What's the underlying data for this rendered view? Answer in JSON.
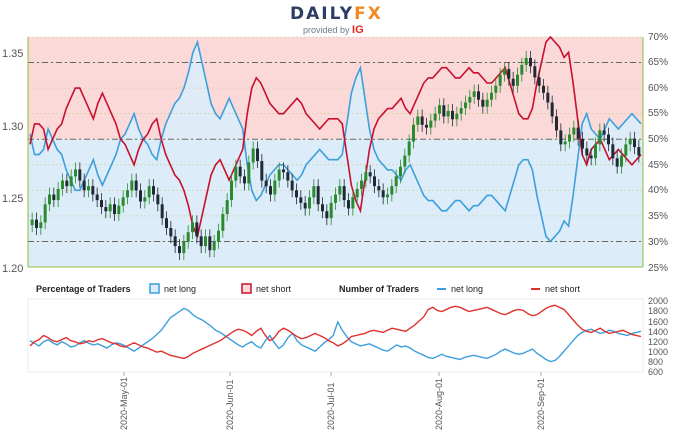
{
  "header": {
    "brand_main": "DAILY",
    "brand_accent": "FX",
    "provided_by": "provided by",
    "provider": "IG"
  },
  "chart_data": [
    {
      "type": "candlestick+area",
      "title": "",
      "x_ticks": [
        "2020-May-01",
        "2020-Jun-01",
        "2020-Jul-01",
        "2020-Aug-01",
        "2020-Sep-01"
      ],
      "left_axis": {
        "ylim": [
          1.2,
          1.365
        ],
        "ticks": [
          "1.20",
          "1.25",
          "1.30",
          "1.35"
        ]
      },
      "right_axis": {
        "ylim": [
          25,
          70
        ],
        "ticks": [
          "25%",
          "30%",
          "35%",
          "40%",
          "45%",
          "50%",
          "55%",
          "60%",
          "65%",
          "70%"
        ]
      },
      "price_candles_close": [
        1.234,
        1.228,
        1.232,
        1.245,
        1.252,
        1.248,
        1.256,
        1.262,
        1.258,
        1.265,
        1.27,
        1.262,
        1.255,
        1.258,
        1.252,
        1.248,
        1.243,
        1.24,
        1.245,
        1.238,
        1.244,
        1.25,
        1.255,
        1.262,
        1.255,
        1.247,
        1.25,
        1.258,
        1.252,
        1.245,
        1.235,
        1.228,
        1.222,
        1.215,
        1.21,
        1.218,
        1.225,
        1.232,
        1.222,
        1.215,
        1.222,
        1.212,
        1.218,
        1.226,
        1.238,
        1.248,
        1.262,
        1.272,
        1.265,
        1.26,
        1.275,
        1.285,
        1.276,
        1.262,
        1.258,
        1.252,
        1.262,
        1.27,
        1.268,
        1.262,
        1.255,
        1.25,
        1.246,
        1.242,
        1.25,
        1.258,
        1.245,
        1.24,
        1.235,
        1.246,
        1.252,
        1.258,
        1.248,
        1.242,
        1.25,
        1.256,
        1.262,
        1.268,
        1.265,
        1.258,
        1.255,
        1.25,
        1.252,
        1.258,
        1.265,
        1.272,
        1.28,
        1.29,
        1.302,
        1.308,
        1.302,
        1.3,
        1.305,
        1.31,
        1.316,
        1.308,
        1.312,
        1.306,
        1.31,
        1.314,
        1.318,
        1.322,
        1.326,
        1.32,
        1.315,
        1.32,
        1.325,
        1.33,
        1.338,
        1.342,
        1.335,
        1.33,
        1.338,
        1.345,
        1.35,
        1.344,
        1.336,
        1.33,
        1.325,
        1.318,
        1.308,
        1.298,
        1.288,
        1.29,
        1.295,
        1.3,
        1.292,
        1.285,
        1.28,
        1.278,
        1.288,
        1.298,
        1.295,
        1.288,
        1.278,
        1.272,
        1.28,
        1.288,
        1.292,
        1.286,
        1.28
      ],
      "percentage_net_long": [
        51,
        47,
        47,
        48,
        52,
        50,
        48,
        47,
        44,
        42,
        40,
        40,
        42,
        44,
        46,
        43,
        41,
        43,
        45,
        47,
        50,
        51,
        53,
        55,
        52,
        50,
        49,
        47,
        46,
        50,
        53,
        55,
        57,
        58,
        60,
        63,
        67,
        69,
        65,
        61,
        57,
        55,
        54,
        56,
        58,
        56,
        54,
        52,
        45,
        40,
        38,
        39,
        41,
        43,
        44,
        45,
        45,
        44,
        43,
        42,
        43,
        45,
        46,
        47,
        48,
        47,
        46,
        46,
        46,
        47,
        53,
        59,
        62,
        64,
        58,
        52,
        48,
        46,
        45,
        44,
        44,
        43,
        42,
        44,
        45,
        43,
        41,
        39,
        38,
        38,
        37,
        36,
        36,
        37,
        38,
        38,
        37,
        36,
        37,
        37,
        38,
        39,
        39,
        38,
        37,
        36,
        39,
        42,
        45,
        46,
        46,
        44,
        39,
        35,
        31,
        30,
        31,
        32,
        34,
        33,
        39,
        46,
        53,
        55,
        52,
        51,
        50,
        52,
        54,
        53,
        52,
        53,
        54,
        55,
        54,
        53
      ],
      "percentage_net_short": [
        49,
        53,
        53,
        52,
        48,
        50,
        52,
        53,
        56,
        58,
        60,
        60,
        58,
        56,
        54,
        57,
        59,
        57,
        55,
        53,
        50,
        49,
        47,
        45,
        48,
        50,
        51,
        53,
        54,
        50,
        47,
        45,
        43,
        42,
        40,
        37,
        33,
        31,
        35,
        39,
        43,
        45,
        46,
        44,
        42,
        44,
        46,
        48,
        55,
        60,
        62,
        61,
        59,
        57,
        56,
        55,
        55,
        56,
        57,
        58,
        57,
        55,
        54,
        53,
        52,
        53,
        54,
        54,
        54,
        53,
        47,
        41,
        38,
        36,
        42,
        48,
        52,
        54,
        55,
        56,
        56,
        57,
        58,
        56,
        55,
        57,
        59,
        61,
        62,
        62,
        63,
        64,
        64,
        63,
        62,
        62,
        63,
        64,
        63,
        63,
        62,
        61,
        61,
        62,
        63,
        64,
        61,
        58,
        55,
        54,
        54,
        56,
        61,
        65,
        69,
        70,
        69,
        68,
        66,
        67,
        61,
        54,
        47,
        45,
        48,
        49,
        50,
        48,
        46,
        47,
        48,
        47,
        46,
        45,
        46,
        47
      ],
      "series": [
        {
          "name": "net long",
          "color": "#3d9fdc"
        },
        {
          "name": "net short",
          "color": "#e0322d"
        }
      ]
    },
    {
      "type": "line",
      "title": "Number of Traders",
      "y_ticks": [
        "600",
        "800",
        "1000",
        "1200",
        "1400",
        "1600",
        "1800",
        "2000"
      ],
      "ylim": [
        600,
        2000
      ],
      "series": [
        {
          "name": "net long",
          "color": "#3d9fdc",
          "values": [
            1200,
            1150,
            1100,
            1180,
            1220,
            1160,
            1120,
            1180,
            1140,
            1080,
            1100,
            1160,
            1200,
            1150,
            1120,
            1140,
            1100,
            1060,
            1120,
            1160,
            1140,
            1100,
            1050,
            1000,
            1060,
            1120,
            1180,
            1240,
            1320,
            1400,
            1520,
            1640,
            1700,
            1760,
            1820,
            1780,
            1700,
            1640,
            1600,
            1540,
            1480,
            1400,
            1360,
            1300,
            1240,
            1180,
            1120,
            1080,
            1140,
            1180,
            1100,
            1060,
            1200,
            1300,
            1160,
            1050,
            1120,
            1260,
            1340,
            1200,
            1120,
            1080,
            1040,
            1000,
            1080,
            1160,
            1220,
            1300,
            1560,
            1400,
            1280,
            1180,
            1140,
            1100,
            1120,
            1140,
            1100,
            1060,
            1020,
            1000,
            1060,
            1120,
            1080,
            1100,
            1060,
            1000,
            960,
            920,
            880,
            860,
            900,
            940,
            900,
            880,
            860,
            840,
            880,
            900,
            920,
            900,
            880,
            860,
            900,
            940,
            1000,
            1040,
            1000,
            960,
            940,
            960,
            1000,
            1040,
            960,
            900,
            840,
            800,
            820,
            900,
            1000,
            1100,
            1200,
            1300,
            1360,
            1400,
            1420,
            1380,
            1340,
            1360,
            1400,
            1380,
            1340,
            1320,
            1300,
            1340,
            1360,
            1380
          ]
        },
        {
          "name": "net short",
          "color": "#e0322d",
          "values": [
            1100,
            1180,
            1220,
            1300,
            1260,
            1200,
            1180,
            1220,
            1260,
            1200,
            1180,
            1140,
            1160,
            1200,
            1180,
            1220,
            1240,
            1200,
            1160,
            1140,
            1100,
            1080,
            1120,
            1160,
            1120,
            1080,
            1060,
            1020,
            980,
            1000,
            960,
            920,
            900,
            880,
            860,
            900,
            960,
            1000,
            1040,
            1080,
            1120,
            1160,
            1200,
            1260,
            1320,
            1380,
            1420,
            1400,
            1360,
            1300,
            1380,
            1440,
            1300,
            1200,
            1260,
            1380,
            1440,
            1400,
            1340,
            1280,
            1240,
            1260,
            1300,
            1340,
            1300,
            1260,
            1200,
            1160,
            1100,
            1140,
            1200,
            1280,
            1300,
            1320,
            1340,
            1380,
            1400,
            1380,
            1360,
            1400,
            1440,
            1420,
            1400,
            1380,
            1440,
            1500,
            1580,
            1660,
            1800,
            1840,
            1780,
            1760,
            1800,
            1840,
            1860,
            1840,
            1800,
            1760,
            1780,
            1800,
            1820,
            1840,
            1800,
            1760,
            1720,
            1700,
            1740,
            1780,
            1800,
            1780,
            1720,
            1680,
            1700,
            1760,
            1820,
            1860,
            1880,
            1840,
            1800,
            1700,
            1600,
            1500,
            1420,
            1380,
            1360,
            1400,
            1440,
            1380,
            1340,
            1360,
            1380,
            1400,
            1360,
            1320,
            1300,
            1280
          ]
        }
      ],
      "legend_percentage_title": "Percentage of Traders",
      "legend_percentage_long": "net long",
      "legend_percentage_short": "net short",
      "legend_number_title": "Number of Traders",
      "legend_number_long": "net long",
      "legend_number_short": "net short"
    }
  ],
  "colors": {
    "long_fill": "#dcecf8",
    "short_fill": "#fbd9d9",
    "candle_up": "#2a8a2e",
    "candle_down": "#1f2a35",
    "grid": "#c8ce9c",
    "axis": "#8fbf3a"
  }
}
